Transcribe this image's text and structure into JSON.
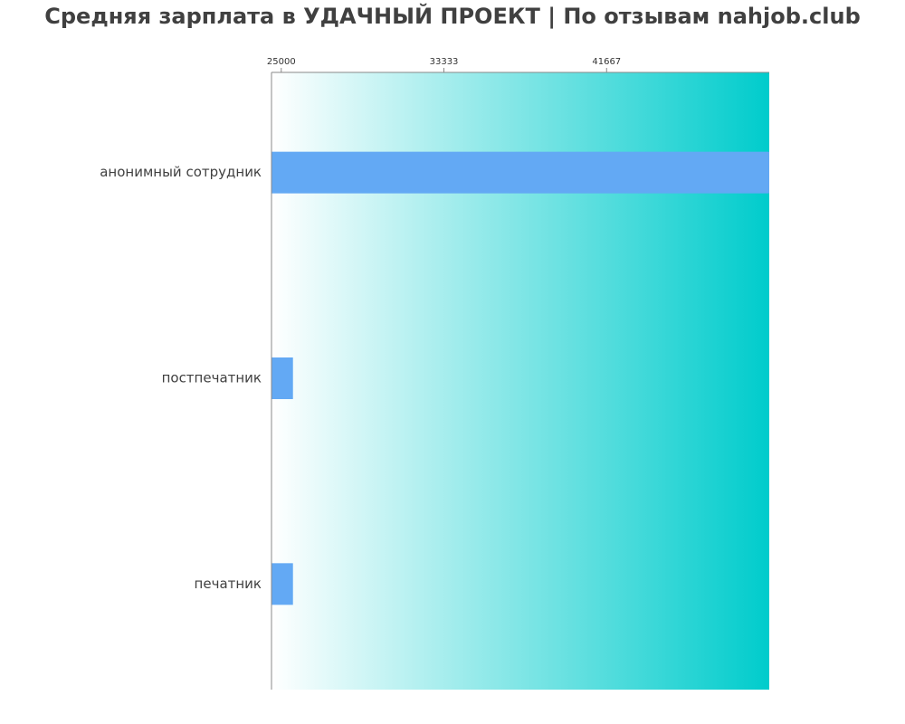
{
  "chart_data": {
    "type": "bar",
    "orientation": "horizontal",
    "title": "Средняя зарплата в УДАЧНЫЙ ПРОЕКТ | По отзывам nahjob.club",
    "categories": [
      "анонимный сотрудник",
      "постпечатник",
      "печатник"
    ],
    "values": [
      50000,
      25600,
      25600
    ],
    "xlim": [
      24500,
      50000
    ],
    "x_ticks": [
      25000,
      33333,
      41667
    ],
    "x_tick_labels": [
      "25000",
      "33333",
      "41667"
    ],
    "x_axis_position": "top",
    "grid": false,
    "bar_color": "#63a9f4",
    "background_gradient": [
      "#ffffff",
      "#00cccc"
    ]
  }
}
